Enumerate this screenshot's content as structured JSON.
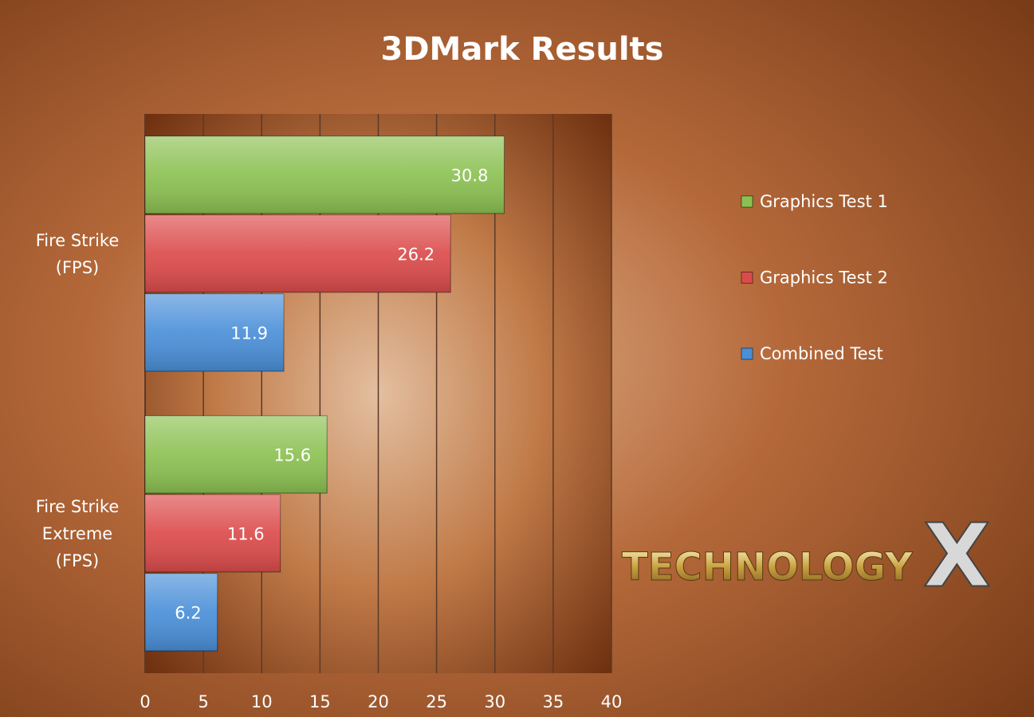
{
  "chart_data": {
    "type": "bar",
    "orientation": "horizontal",
    "title": "3DMark Results",
    "categories": [
      "Fire Strike\n(FPS)",
      "Fire Strike\nExtreme\n(FPS)"
    ],
    "series": [
      {
        "name": "Graphics Test 1",
        "color": "#8cc152",
        "values": [
          30.8,
          15.6
        ]
      },
      {
        "name": "Graphics Test 2",
        "color": "#dc4b4b",
        "values": [
          26.2,
          11.6
        ]
      },
      {
        "name": "Combined Test",
        "color": "#4a8fd8",
        "values": [
          11.9,
          6.2
        ]
      }
    ],
    "xlim": [
      0,
      40
    ],
    "xticks": [
      0,
      5,
      10,
      15,
      20,
      25,
      30,
      35,
      40
    ],
    "grid": true,
    "legend": "right",
    "logo": {
      "text": "TECHNOLOGY",
      "mark": "X"
    }
  }
}
